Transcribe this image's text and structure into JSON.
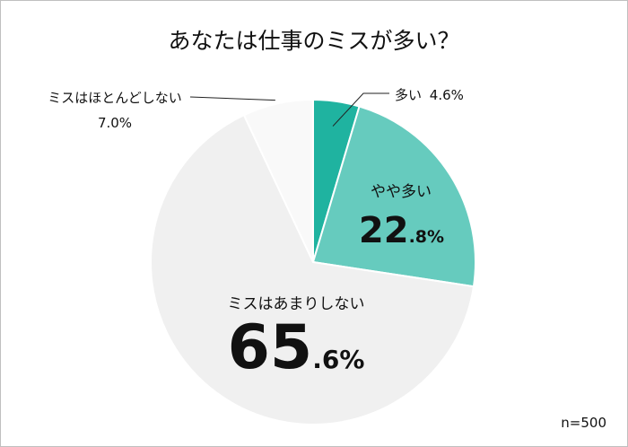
{
  "title": "あなたは仕事のミスが多い？",
  "sample_size": "n=500",
  "chart_data": {
    "type": "pie",
    "title": "あなたは仕事のミスが多い？",
    "slices": [
      {
        "label": "多い",
        "value": 4.6,
        "display_int": "4",
        "display_dec": ".6%",
        "color": "#1fb3a0"
      },
      {
        "label": "やや多い",
        "value": 22.8,
        "display_int": "22",
        "display_dec": ".8%",
        "color": "#66cbbe"
      },
      {
        "label": "ミスはあまりしない",
        "value": 65.6,
        "display_int": "65",
        "display_dec": ".6%",
        "color": "#f0f0f0"
      },
      {
        "label": "ミスはほとんどしない",
        "value": 7.0,
        "display_int": "7",
        "display_dec": ".0%",
        "color": "#f9f9f9"
      }
    ]
  }
}
